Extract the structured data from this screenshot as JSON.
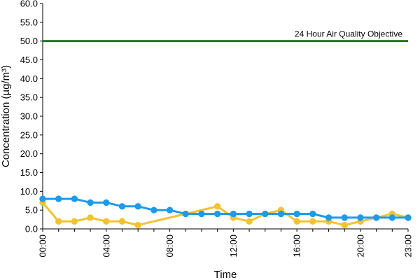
{
  "chart_data": {
    "type": "line",
    "title": "",
    "xlabel": "Time",
    "ylabel": "Concentration (µg/m³)",
    "ylim": [
      0,
      60
    ],
    "y_ticks": [
      "0.0",
      "5.0",
      "10.0",
      "15.0",
      "20.0",
      "25.0",
      "30.0",
      "35.0",
      "40.0",
      "45.0",
      "50.0",
      "55.0",
      "60.0"
    ],
    "x_ticks": [
      "00:00",
      "04:00",
      "08:00",
      "12:00",
      "16:00",
      "20:00",
      "23:00"
    ],
    "x": [
      "00:00",
      "01:00",
      "02:00",
      "03:00",
      "04:00",
      "05:00",
      "06:00",
      "07:00",
      "08:00",
      "09:00",
      "10:00",
      "11:00",
      "12:00",
      "13:00",
      "14:00",
      "15:00",
      "16:00",
      "17:00",
      "18:00",
      "19:00",
      "20:00",
      "21:00",
      "22:00",
      "23:00"
    ],
    "grid": false,
    "legend": "none",
    "series": [
      {
        "color": "#1e9be8",
        "values": [
          8,
          8,
          8,
          7,
          7,
          6,
          6,
          5,
          5,
          4,
          4,
          4,
          4,
          4,
          4,
          4,
          4,
          4,
          3,
          3,
          3,
          3,
          3,
          3
        ]
      },
      {
        "color": "#f2c330",
        "values": [
          7,
          2,
          2,
          3,
          2,
          2,
          1,
          null,
          null,
          null,
          null,
          6,
          3,
          2,
          4,
          5,
          2,
          2,
          2,
          1,
          2,
          3,
          4,
          3
        ]
      }
    ],
    "reference_line": {
      "label": "24 Hour Air Quality Objective",
      "value": 50,
      "color": "#1f7a1f"
    },
    "axis_color": "#000000"
  }
}
